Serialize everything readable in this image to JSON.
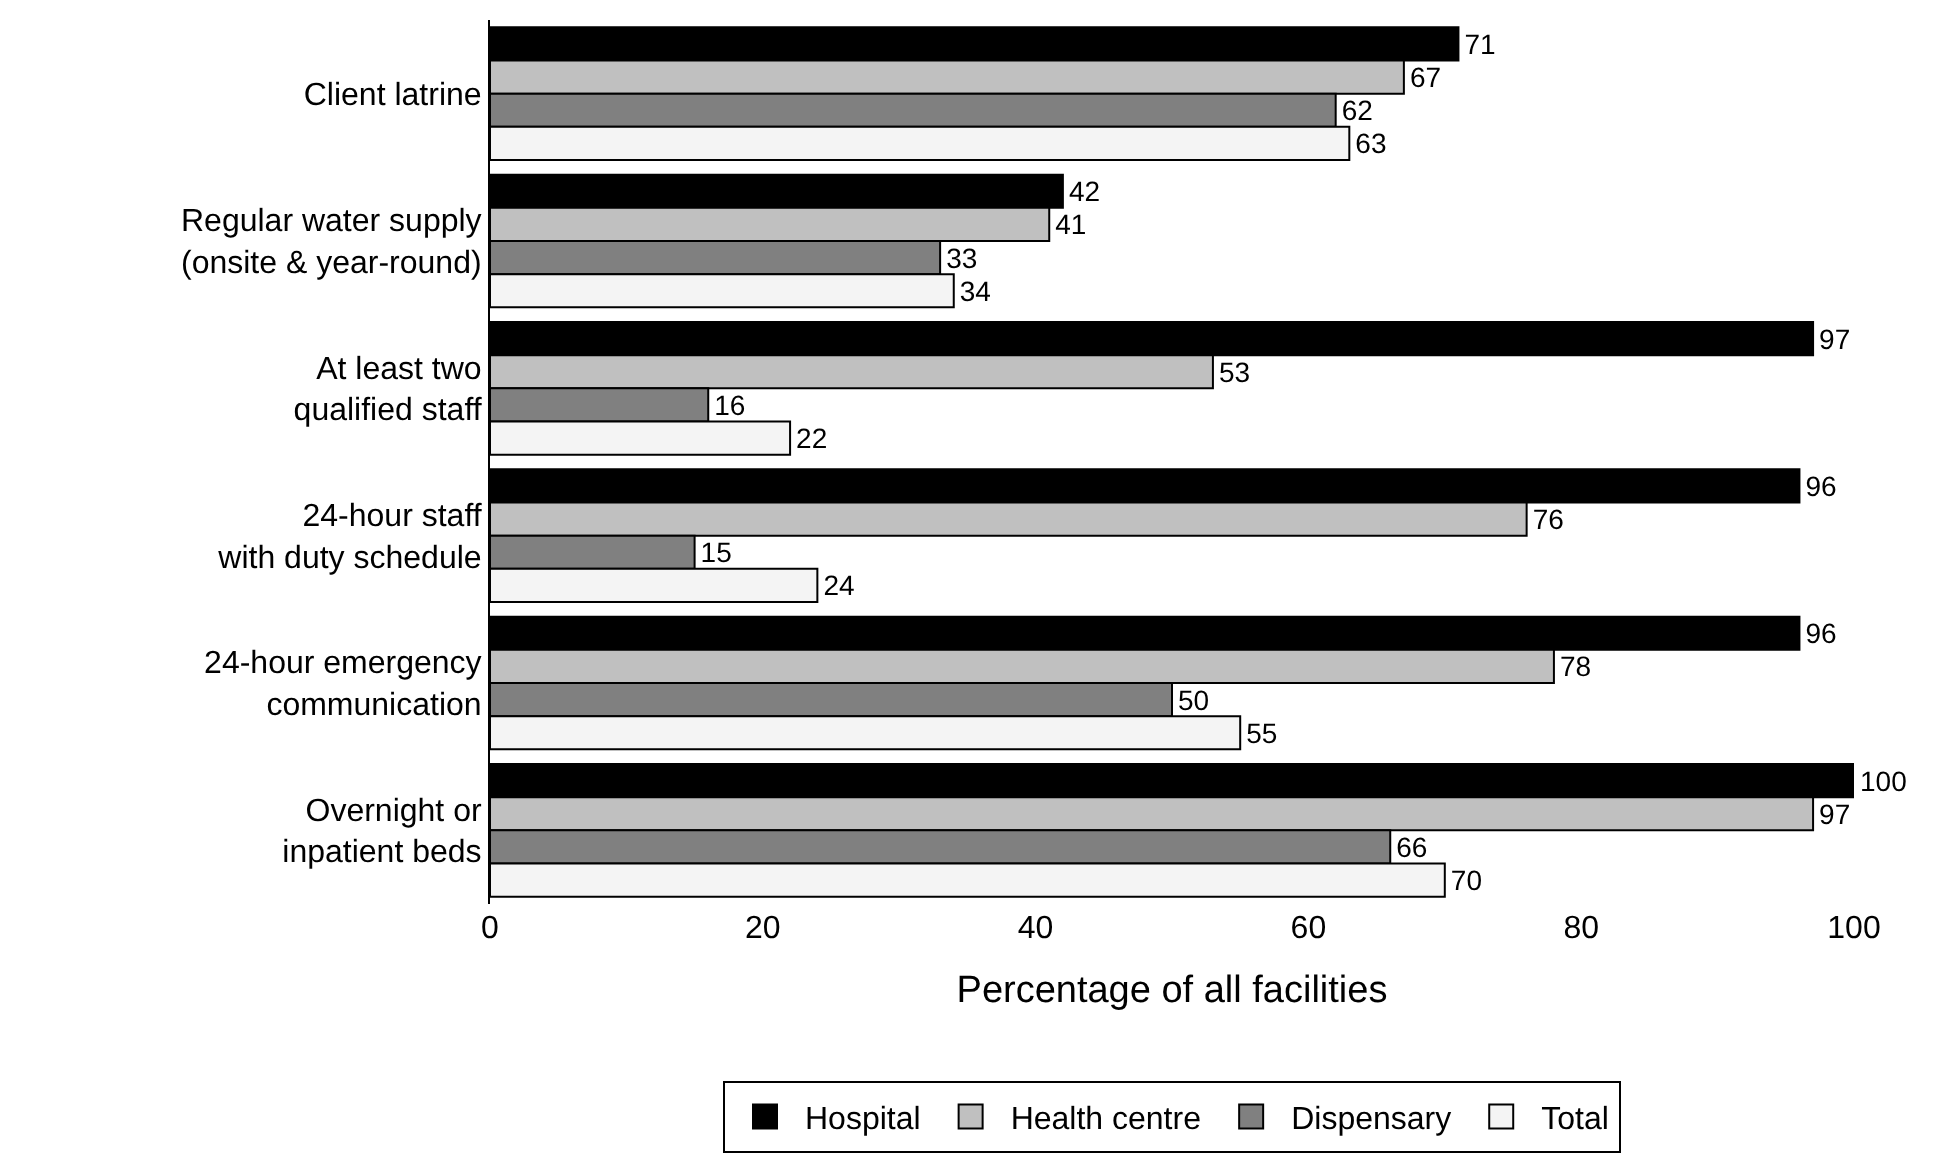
{
  "chart_data": {
    "type": "bar",
    "orientation": "horizontal",
    "xlabel": "Percentage of all facilities",
    "categories": [
      "Client latrine",
      "Regular water supply\n(onsite & year-round)",
      "At least two\nqualified staff",
      "24-hour staff\nwith duty schedule",
      "24-hour emergency\ncommunication",
      "Overnight or\ninpatient beds"
    ],
    "series": [
      {
        "name": "Hospital",
        "color": "#000000",
        "values": [
          71,
          42,
          97,
          96,
          96,
          100
        ]
      },
      {
        "name": "Health centre",
        "color": "#c0c0c0",
        "values": [
          67,
          41,
          53,
          76,
          78,
          97
        ]
      },
      {
        "name": "Dispensary",
        "color": "#808080",
        "values": [
          62,
          33,
          16,
          15,
          50,
          66
        ]
      },
      {
        "name": "Total",
        "color": "#f4f4f4",
        "values": [
          63,
          34,
          22,
          24,
          55,
          70
        ]
      }
    ],
    "xlim": [
      0,
      100
    ],
    "xticks": [
      0,
      20,
      40,
      60,
      80,
      100
    ],
    "data_labels": true,
    "legend": "bottom"
  }
}
